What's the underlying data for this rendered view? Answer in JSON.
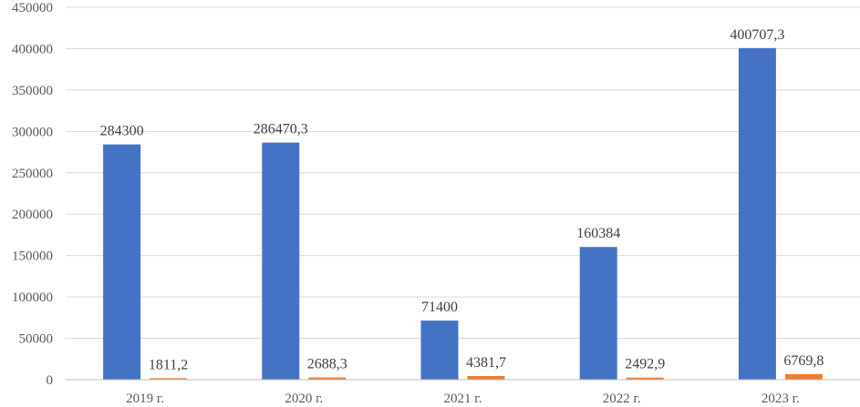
{
  "chart_data": {
    "type": "bar",
    "categories": [
      "2019 г.",
      "2020 г.",
      "2021 г.",
      "2022 г.",
      "2023 г."
    ],
    "series": [
      {
        "values": [
          284300,
          286470.3,
          71400,
          160384,
          400707.3
        ],
        "labels": [
          "284300",
          "286470,3",
          "71400",
          "160384",
          "400707,3"
        ],
        "color": "#4472c4"
      },
      {
        "values": [
          1811.2,
          2688.3,
          4381.7,
          2492.9,
          6769.8
        ],
        "labels": [
          "1811,2",
          "2688,3",
          "4381,7",
          "2492,9",
          "6769,8"
        ],
        "color": "#ed7d31"
      }
    ],
    "yticks": [
      0,
      50000,
      100000,
      150000,
      200000,
      250000,
      300000,
      350000,
      400000,
      450000
    ],
    "ylim": [
      0,
      450000
    ],
    "grid": true,
    "legend": "none"
  }
}
